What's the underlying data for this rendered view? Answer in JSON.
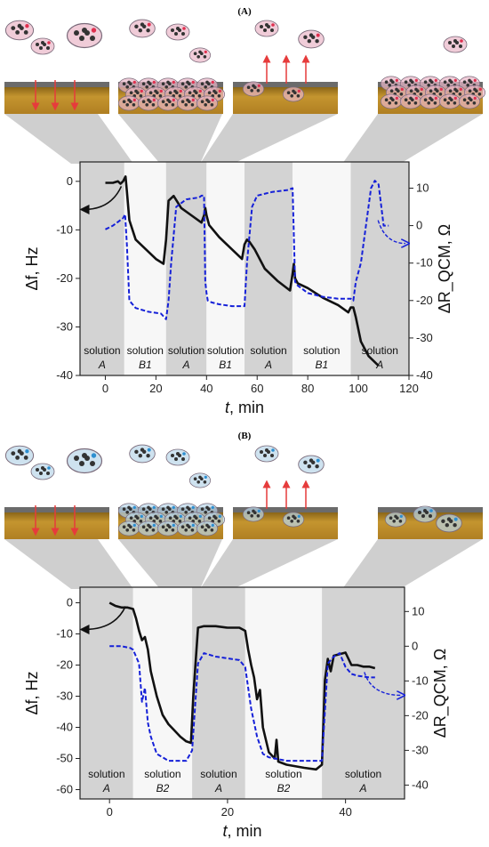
{
  "chart_data": [
    {
      "panel": "(A)",
      "type": "line",
      "xlabel_italic": "t",
      "xlabel_rest": ", min",
      "ylabel_left": "Δf, Hz",
      "ylabel_right": "ΔR_QCM, Ω",
      "xlim": [
        -10,
        120
      ],
      "ylim": [
        -40,
        4
      ],
      "y2lim": [
        -40,
        17
      ],
      "xticks": [
        0,
        20,
        40,
        60,
        80,
        100,
        120
      ],
      "yticks": [
        0,
        -10,
        -20,
        -30,
        -40
      ],
      "y2ticks": [
        10,
        0,
        -10,
        -20,
        -30,
        -40
      ],
      "phases": [
        {
          "from": -10,
          "to": 7.5,
          "label": "solution",
          "id": "A",
          "shade": "gray"
        },
        {
          "from": 7.5,
          "to": 24,
          "label": "solution",
          "id": "B1",
          "shade": "white"
        },
        {
          "from": 24,
          "to": 40,
          "label": "solution",
          "id": "A",
          "shade": "gray"
        },
        {
          "from": 40,
          "to": 55,
          "label": "solution",
          "id": "B1",
          "shade": "white"
        },
        {
          "from": 55,
          "to": 74,
          "label": "solution",
          "id": "A",
          "shade": "gray"
        },
        {
          "from": 74,
          "to": 97,
          "label": "solution",
          "id": "B1",
          "shade": "white"
        },
        {
          "from": 97,
          "to": 120,
          "label": "solution",
          "id": "A",
          "shade": "gray"
        }
      ],
      "series": [
        {
          "axis": "left",
          "color": "#111111",
          "style": "solid",
          "x": [
            0,
            3,
            5,
            6,
            7,
            8,
            8.5,
            9.5,
            12,
            16,
            20,
            23,
            24,
            25,
            27,
            30,
            34,
            38,
            39,
            39.5,
            40,
            41,
            45,
            50,
            54,
            55,
            56,
            57,
            59,
            63,
            68,
            73,
            74,
            74.5,
            75,
            76,
            80,
            86,
            92,
            96,
            97,
            98,
            99,
            101,
            104,
            108
          ],
          "y": [
            -0.3,
            -0.3,
            0,
            -0.5,
            0,
            1,
            -2,
            -8,
            -12,
            -14,
            -16,
            -17,
            -12,
            -4,
            -3,
            -5.5,
            -7,
            -8.5,
            -7,
            -5.5,
            -7,
            -9,
            -11.5,
            -14,
            -16,
            -13,
            -12,
            -12.5,
            -14,
            -18,
            -20.5,
            -22.5,
            -19,
            -17,
            -20,
            -21,
            -22,
            -24,
            -25.5,
            -27,
            -26,
            -26,
            -28,
            -33,
            -36,
            -38
          ]
        },
        {
          "axis": "right",
          "color": "#1520d8",
          "style": "dashed",
          "x": [
            0,
            3,
            5,
            7,
            7.8,
            8.5,
            9.5,
            12,
            17,
            22,
            24,
            25,
            26,
            28,
            32,
            37,
            38,
            39,
            39.5,
            40,
            40.5,
            42,
            45,
            50,
            55,
            56,
            58,
            60,
            66,
            72,
            74,
            75,
            76,
            80,
            86,
            92,
            97,
            98,
            99,
            101,
            103,
            105,
            106.5,
            108,
            110,
            112
          ],
          "y": [
            -1,
            0,
            1,
            2,
            3,
            -5,
            -20,
            -22,
            -23,
            -23.5,
            -25,
            -20,
            -10,
            5,
            7,
            7.5,
            8,
            8,
            -15,
            -18,
            -20,
            -20.5,
            -21,
            -21.5,
            -21.5,
            -10,
            5,
            8,
            9,
            9.5,
            10,
            -15,
            -16,
            -18,
            -19,
            -19.5,
            -19.5,
            -20,
            -15,
            -10,
            0,
            10,
            12,
            11,
            0,
            0
          ]
        }
      ],
      "annotations": [
        {
          "text": "arrow-to-left-axis",
          "kind": "black curved arrow"
        },
        {
          "text": "arrow-to-right-axis",
          "kind": "blue dashed curved arrow"
        }
      ]
    },
    {
      "panel": "(B)",
      "type": "line",
      "xlabel_italic": "t",
      "xlabel_rest": ", min",
      "ylabel_left": "Δf, Hz",
      "ylabel_right": "ΔR_QCM, Ω",
      "xlim": [
        -5,
        50
      ],
      "ylim": [
        -63,
        5
      ],
      "y2lim": [
        -44,
        17
      ],
      "xticks": [
        0,
        20,
        40
      ],
      "yticks": [
        0,
        -10,
        -20,
        -30,
        -40,
        -50,
        -60
      ],
      "y2ticks": [
        10,
        0,
        -10,
        -20,
        -30,
        -40
      ],
      "phases": [
        {
          "from": -5,
          "to": 4,
          "label": "solution",
          "id": "A",
          "shade": "gray"
        },
        {
          "from": 4,
          "to": 14,
          "label": "solution",
          "id": "B2",
          "shade": "white"
        },
        {
          "from": 14,
          "to": 23,
          "label": "solution",
          "id": "A",
          "shade": "gray"
        },
        {
          "from": 23,
          "to": 36,
          "label": "solution",
          "id": "B2",
          "shade": "white"
        },
        {
          "from": 36,
          "to": 50,
          "label": "solution",
          "id": "A",
          "shade": "gray"
        }
      ],
      "series": [
        {
          "axis": "left",
          "color": "#111111",
          "style": "solid",
          "x": [
            0,
            1,
            2,
            3,
            4,
            4.5,
            5,
            5.5,
            6,
            6.5,
            7,
            8,
            9,
            10,
            11,
            12,
            13,
            13.8,
            14.2,
            15,
            16,
            18,
            20,
            22,
            23,
            23.5,
            24,
            24.5,
            25,
            25.5,
            26,
            27,
            28,
            28.3,
            28.6,
            30,
            33,
            35,
            36,
            36.5,
            37,
            37.5,
            38,
            39,
            40,
            41,
            42,
            43,
            44,
            45
          ],
          "y": [
            0,
            -1,
            -1.5,
            -1.5,
            -2,
            -5,
            -9,
            -12,
            -11,
            -15,
            -22,
            -30,
            -36,
            -39,
            -41,
            -43,
            -44.5,
            -45,
            -30,
            -8,
            -7.5,
            -7.5,
            -8,
            -8,
            -9,
            -15,
            -20,
            -24,
            -31,
            -28,
            -40,
            -48,
            -50,
            -44,
            -51,
            -52,
            -53,
            -53.5,
            -52,
            -25,
            -18,
            -22,
            -17,
            -16.5,
            -16,
            -20,
            -20,
            -20.5,
            -20.5,
            -21
          ]
        },
        {
          "axis": "right",
          "color": "#1520d8",
          "style": "dashed",
          "x": [
            0,
            2,
            3.5,
            4,
            5,
            5.5,
            6,
            6.5,
            7,
            8,
            10,
            13,
            14,
            15,
            16,
            18,
            20,
            22,
            23,
            24,
            25,
            26,
            27,
            30,
            33,
            36,
            37,
            38,
            39,
            40,
            41,
            42,
            44,
            45
          ],
          "y": [
            0,
            0,
            -0.5,
            -1,
            -5,
            -16,
            -12,
            -22,
            -26,
            -31,
            -33,
            -33,
            -30,
            -5,
            -2,
            -3,
            -3.5,
            -4,
            -6,
            -18,
            -26,
            -31,
            -32,
            -33,
            -33,
            -33,
            -5,
            -3,
            -2,
            -6,
            -8,
            -8.5,
            -9,
            -9
          ]
        }
      ],
      "annotations": [
        {
          "text": "arrow-to-left-axis",
          "kind": "black curved arrow"
        },
        {
          "text": "arrow-to-right-axis",
          "kind": "blue dashed curved arrow"
        }
      ]
    }
  ],
  "colors": {
    "shade_gray": "#d3d3d3",
    "shade_white": "#f7f7f7",
    "frequency_line": "#111111",
    "resistance_line": "#1520d8",
    "crystal_surface": "#b7862a",
    "molecule_halo_A": "#eab6c8",
    "molecule_halo_B": "#b9d6e8",
    "arrow_red": "#e63b3b",
    "connector_gray": "#c7c7c7"
  },
  "illustrations": {
    "panel_A": [
      "molecules-adsorbing-icon",
      "dense-adsorbed-layer-icon",
      "molecules-desorbing-icon",
      "dense-adsorbed-layer-icon"
    ],
    "panel_B": [
      "molecules-adsorbing-icon",
      "dense-adsorbed-layer-icon",
      "molecules-desorbing-icon",
      "sparse-adsorbed-layer-icon"
    ]
  }
}
